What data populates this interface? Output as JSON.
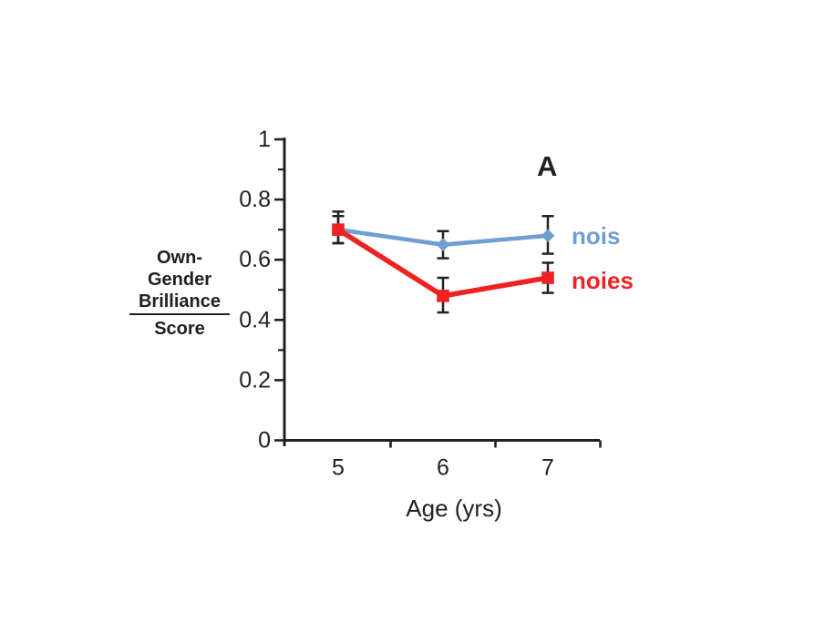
{
  "figure": {
    "panel_label": "A",
    "background": "#ffffff",
    "text_color": "#242021"
  },
  "chart_data": {
    "type": "line",
    "title": "",
    "xlabel": "Age (yrs)",
    "ylabel": "Own-Gender Brilliance Score",
    "ylabel_fraction": {
      "numerator_lines": [
        "Own-",
        "Gender",
        "Brilliance"
      ],
      "denominator": "Score"
    },
    "categories": [
      5,
      6,
      7
    ],
    "x_tick_labels": [
      "5",
      "6",
      "7"
    ],
    "x_boundary_ticks": [
      5.5,
      6.5,
      7.5
    ],
    "ylim": [
      0,
      1
    ],
    "y_major_ticks": [
      0,
      0.2,
      0.4,
      0.6,
      0.8,
      1
    ],
    "y_major_tick_labels": [
      "0",
      "0.2",
      "0.4",
      "0.6",
      "0.8",
      "1"
    ],
    "y_minor_ticks": [
      0.3,
      0.5,
      0.7,
      0.9
    ],
    "grid": false,
    "legend_position": "right-of-last-point",
    "error_bar_color": "#242021",
    "axis_color": "#242021",
    "series": [
      {
        "name": "nois",
        "color": "#6f9ed2",
        "marker": "diamond",
        "values": [
          0.7,
          0.65,
          0.68
        ],
        "error_up": [
          0.045,
          0.045,
          0.065
        ],
        "error_down": [
          0.045,
          0.045,
          0.06
        ]
      },
      {
        "name": "noies",
        "color": "#ee2222",
        "marker": "square",
        "values": [
          0.7,
          0.48,
          0.54
        ],
        "error_up": [
          0.06,
          0.06,
          0.05
        ],
        "error_down": [
          0.045,
          0.055,
          0.05
        ]
      }
    ]
  }
}
